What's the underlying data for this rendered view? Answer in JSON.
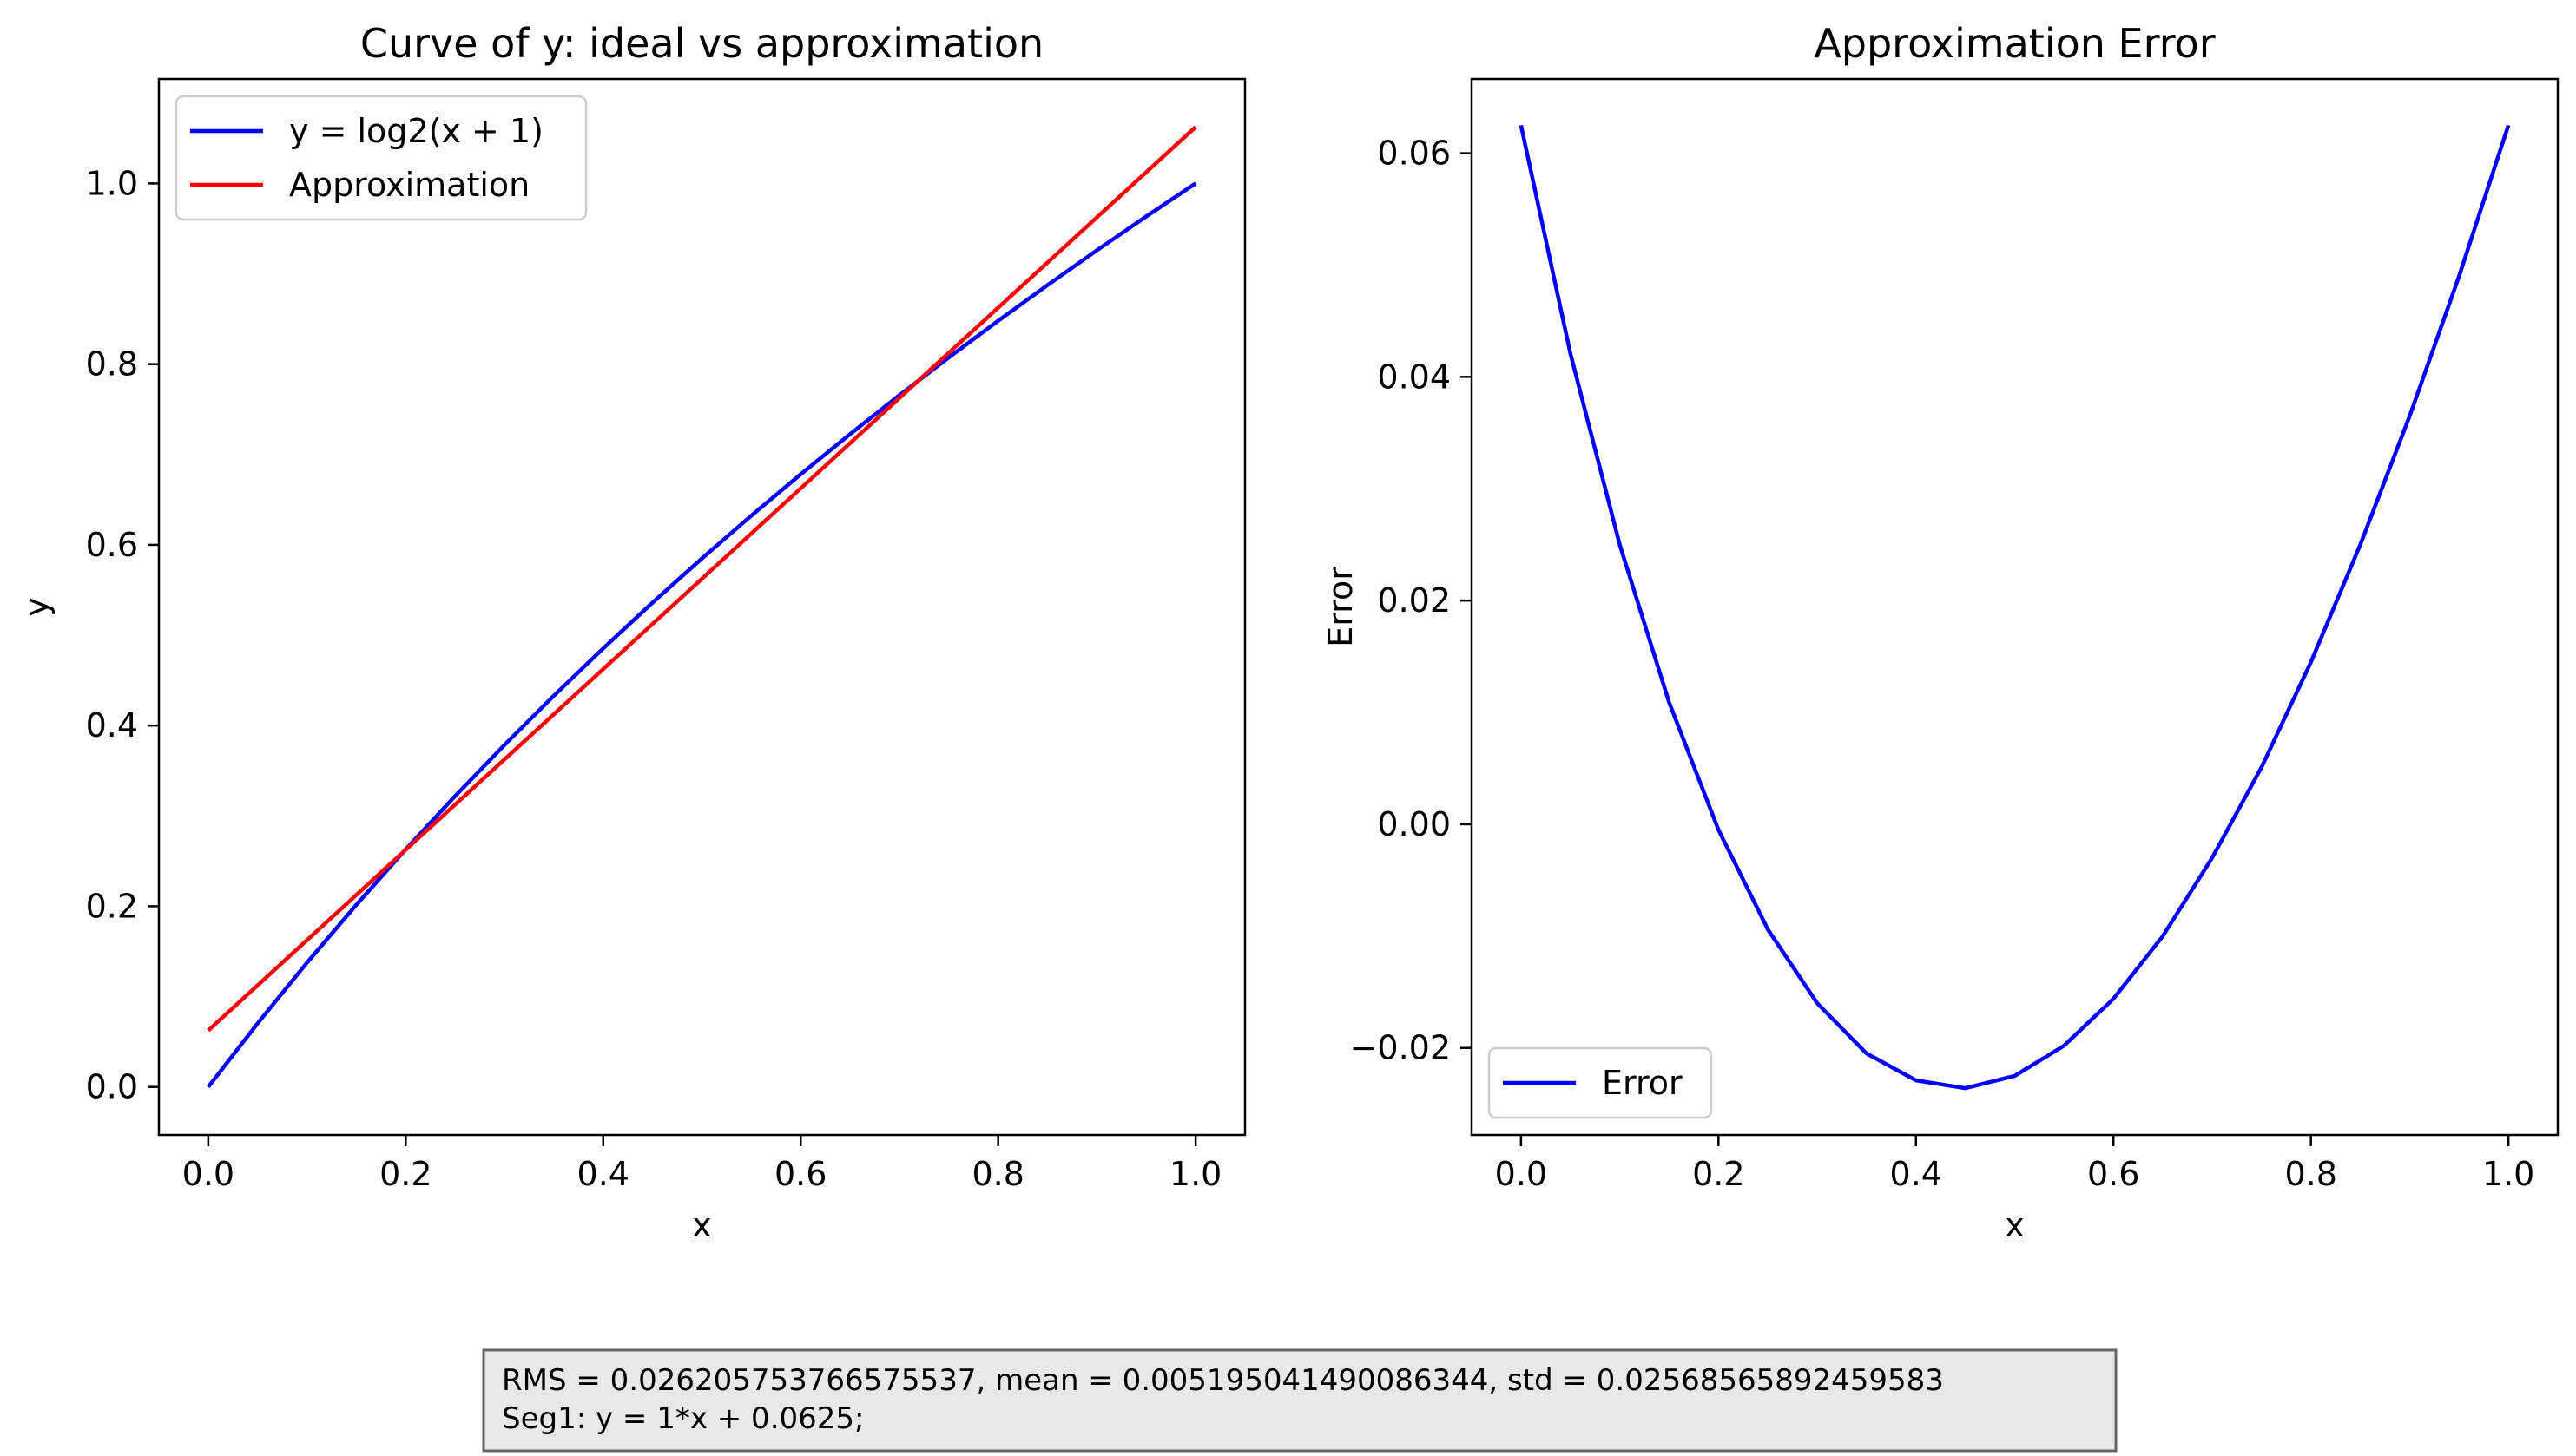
{
  "chart_data": [
    {
      "type": "line",
      "title": "Curve of y: ideal vs approximation",
      "xlabel": "x",
      "ylabel": "y",
      "xlim": [
        -0.05,
        1.05
      ],
      "ylim": [
        -0.05313,
        1.11563
      ],
      "xticks": [
        0.0,
        0.2,
        0.4,
        0.6,
        0.8,
        1.0
      ],
      "xtick_labels": [
        "0.0",
        "0.2",
        "0.4",
        "0.6",
        "0.8",
        "1.0"
      ],
      "yticks": [
        0.0,
        0.2,
        0.4,
        0.6,
        0.8,
        1.0
      ],
      "ytick_labels": [
        "0.0",
        "0.2",
        "0.4",
        "0.6",
        "0.8",
        "1.0"
      ],
      "legend_position": "upper-left",
      "grid": false,
      "series": [
        {
          "name": "y = log2(x + 1)",
          "color": "#0000ff",
          "x": [
            0.0,
            0.05,
            0.1,
            0.15,
            0.2,
            0.25,
            0.3,
            0.35,
            0.4,
            0.45,
            0.5,
            0.55,
            0.6,
            0.65,
            0.7,
            0.75,
            0.8,
            0.85,
            0.9,
            0.95,
            1.0
          ],
          "y": [
            0.0,
            0.0704,
            0.1375,
            0.2016,
            0.263,
            0.3219,
            0.3785,
            0.433,
            0.4854,
            0.5361,
            0.585,
            0.6323,
            0.6781,
            0.7225,
            0.7655,
            0.8074,
            0.848,
            0.8875,
            0.926,
            0.9635,
            1.0
          ]
        },
        {
          "name": "Approximation",
          "color": "#ff0000",
          "x": [
            0.0,
            1.0
          ],
          "y": [
            0.0625,
            1.0625
          ]
        }
      ]
    },
    {
      "type": "line",
      "title": "Approximation Error",
      "xlabel": "x",
      "ylabel": "Error",
      "xlim": [
        -0.05,
        1.05
      ],
      "ylim": [
        -0.02778,
        0.06664
      ],
      "xticks": [
        0.0,
        0.2,
        0.4,
        0.6,
        0.8,
        1.0
      ],
      "xtick_labels": [
        "0.0",
        "0.2",
        "0.4",
        "0.6",
        "0.8",
        "1.0"
      ],
      "yticks": [
        -0.02,
        0.0,
        0.02,
        0.04,
        0.06
      ],
      "ytick_labels": [
        "−0.02",
        "0.00",
        "0.02",
        "0.04",
        "0.06"
      ],
      "legend_position": "lower-left",
      "grid": false,
      "series": [
        {
          "name": "Error",
          "color": "#0000ff",
          "x": [
            0.0,
            0.05,
            0.1,
            0.15,
            0.2,
            0.25,
            0.3,
            0.35,
            0.4,
            0.4427,
            0.45,
            0.5,
            0.55,
            0.6,
            0.65,
            0.7,
            0.75,
            0.8,
            0.85,
            0.9,
            0.95,
            1.0
          ],
          "y": [
            0.0625,
            0.0421,
            0.025,
            0.0109,
            -0.0005,
            -0.0094,
            -0.016,
            -0.0205,
            -0.0229,
            -0.0235,
            -0.0236,
            -0.0225,
            -0.0198,
            -0.0156,
            -0.01,
            -0.003,
            0.0051,
            0.0145,
            0.025,
            0.0365,
            0.049,
            0.0625
          ]
        }
      ]
    }
  ],
  "info_box": {
    "line1": "RMS = 0.026205753766575537, mean = 0.005195041490086344, std = 0.02568565892459583",
    "line2": "Seg1: y = 1*x + 0.0625;"
  }
}
